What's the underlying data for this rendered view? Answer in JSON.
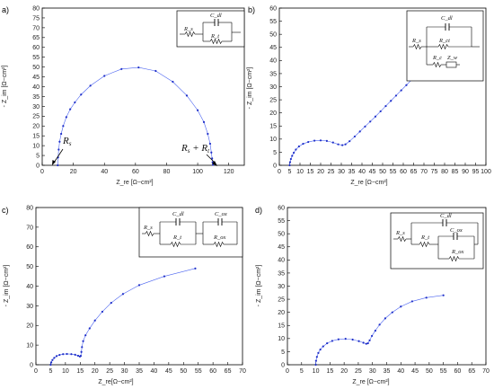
{
  "chart_data": [
    {
      "type": "scatter",
      "panel_label": "a)",
      "xlabel": "Z_re [Ω−cm²]",
      "ylabel": "- Z_im [Ω−cm²]",
      "xlim": [
        0,
        130
      ],
      "ylim": [
        0,
        80
      ],
      "xticks": [
        0,
        20,
        40,
        60,
        80,
        100,
        120
      ],
      "yticks": [
        0,
        5,
        10,
        15,
        20,
        25,
        30,
        35,
        40,
        45,
        50,
        55,
        60,
        65,
        70,
        75,
        80
      ],
      "grid": false,
      "series": [
        {
          "x": [
            10,
            10.2,
            10.6,
            11.2,
            12.2,
            13.5,
            15.5,
            18,
            21,
            25,
            31,
            40,
            51,
            62,
            73,
            84,
            93,
            100,
            104,
            106.5,
            108,
            108.8,
            109.3,
            109.6,
            109.8
          ],
          "y": [
            0,
            4,
            8,
            12,
            16,
            20,
            24.5,
            28.5,
            32,
            36,
            40.5,
            45.5,
            49,
            49.8,
            48,
            42.5,
            35.5,
            28,
            22,
            16,
            11,
            6.5,
            3.5,
            1.5,
            0.3
          ]
        }
      ],
      "annotations": [
        {
          "text": "R_s",
          "x": 10,
          "y": 2
        },
        {
          "text": "R_s + R_t",
          "x": 109,
          "y": 2
        }
      ],
      "circuit": {
        "elements": [
          "R_s",
          "C_dl",
          "R_t"
        ]
      }
    },
    {
      "type": "scatter",
      "panel_label": "b)",
      "xlabel": "Z_re [Ω−cm²]",
      "ylabel": "- Z_im [Ω−cm²]",
      "xlim": [
        0,
        100
      ],
      "ylim": [
        0,
        60
      ],
      "xticks": [
        0,
        5,
        10,
        15,
        20,
        25,
        30,
        35,
        40,
        45,
        50,
        55,
        60,
        65,
        70,
        75,
        80,
        85,
        90,
        95,
        100
      ],
      "yticks": [
        0,
        5,
        10,
        15,
        20,
        25,
        30,
        35,
        40,
        45,
        50,
        55,
        60
      ],
      "grid": false,
      "series": [
        {
          "x": [
            5,
            5.2,
            5.6,
            6.2,
            7,
            8,
            9.5,
            11.5,
            14,
            17,
            20,
            23,
            26,
            28.5,
            30.5,
            32,
            34,
            36.5,
            39,
            41.5,
            44,
            46.5,
            49,
            51.5,
            54,
            56.5,
            59,
            61.5,
            64
          ],
          "y": [
            0,
            1.2,
            2.4,
            3.6,
            4.8,
            6,
            7.2,
            8.2,
            8.9,
            9.4,
            9.5,
            9.3,
            8.7,
            8,
            7.7,
            8,
            9.2,
            11,
            12.9,
            14.8,
            16.7,
            18.6,
            20.6,
            22.6,
            24.6,
            26.6,
            28.6,
            30.6,
            32.6
          ]
        }
      ],
      "circuit": {
        "elements": [
          "C_dl",
          "R_s",
          "R_ct",
          "R_c",
          "Z_w"
        ]
      }
    },
    {
      "type": "scatter",
      "panel_label": "c)",
      "xlabel": "Z_re[Ω−cm²]",
      "ylabel": "- Z_im [Ω−cm²]",
      "xlim": [
        0,
        70
      ],
      "ylim": [
        0,
        80
      ],
      "xticks": [
        0,
        5,
        10,
        15,
        20,
        25,
        30,
        35,
        40,
        45,
        50,
        55,
        60,
        65,
        70
      ],
      "yticks": [
        0,
        10,
        20,
        30,
        40,
        50,
        60,
        70,
        80
      ],
      "grid": false,
      "series": [
        {
          "x": [
            5,
            5.2,
            5.6,
            6.2,
            7,
            8,
            9.2,
            10.5,
            12,
            13.3,
            14.3,
            14.9,
            15.2,
            15.4,
            15.6,
            16,
            16.8,
            18.2,
            20,
            22.5,
            25.5,
            29.5,
            35,
            43.5,
            54
          ],
          "y": [
            0,
            1.2,
            2.4,
            3.5,
            4.4,
            5,
            5.4,
            5.5,
            5.4,
            5.1,
            4.6,
            4.2,
            4.5,
            6.5,
            9,
            12,
            15,
            18.5,
            22.5,
            27,
            31.5,
            36,
            40.5,
            45,
            49
          ]
        }
      ],
      "circuit": {
        "elements": [
          "C_dl",
          "C_ox",
          "R_s",
          "R_t",
          "R_ox"
        ]
      }
    },
    {
      "type": "scatter",
      "panel_label": "d)",
      "xlabel": "Z_re [Ω−cm²]",
      "ylabel": "- Z_im [Ω−cm²]",
      "xlim": [
        0,
        70
      ],
      "ylim": [
        0,
        60
      ],
      "xticks": [
        0,
        5,
        10,
        15,
        20,
        25,
        30,
        35,
        40,
        45,
        50,
        55,
        60,
        65,
        70
      ],
      "yticks": [
        0,
        5,
        10,
        15,
        20,
        25,
        30,
        35,
        40,
        45,
        50,
        55,
        60
      ],
      "grid": false,
      "series": [
        {
          "x": [
            10,
            10.1,
            10.4,
            10.9,
            11.6,
            12.6,
            14,
            15.8,
            18,
            20.5,
            23,
            25.2,
            26.8,
            27.8,
            28.4,
            29,
            29.8,
            31,
            32.5,
            34.5,
            37,
            40,
            44,
            49,
            55
          ],
          "y": [
            0,
            1.5,
            3,
            4.5,
            5.8,
            7,
            8.2,
            9.1,
            9.7,
            9.9,
            9.6,
            9,
            8.4,
            8,
            8.2,
            9.3,
            11,
            13,
            15.3,
            17.7,
            20,
            22.2,
            24.2,
            25.6,
            26.5
          ]
        }
      ],
      "circuit": {
        "elements": [
          "C_dl",
          "C_ox",
          "R_s",
          "R_t",
          "R_ox"
        ]
      }
    }
  ]
}
